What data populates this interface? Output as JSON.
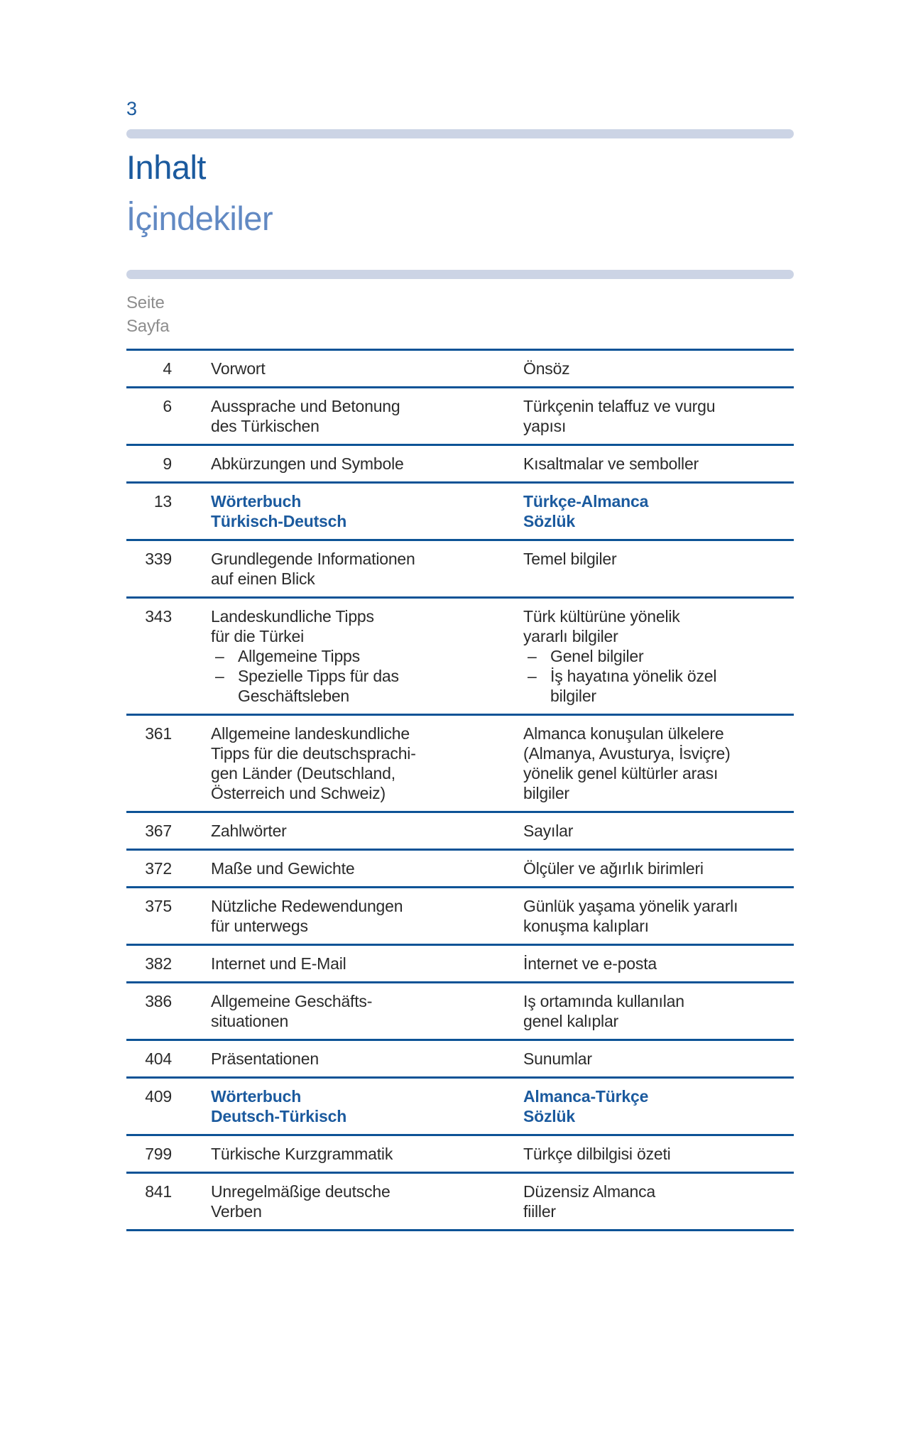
{
  "page": {
    "folio": "3"
  },
  "header": {
    "title_de": "Inhalt",
    "title_tr": "İçindekiler"
  },
  "column_header": {
    "de": "Seite",
    "tr": "Sayfa"
  },
  "colors": {
    "accent_blue": "#1b5a9e",
    "light_blue_title": "#6189c3",
    "divider_bar": "#ccd4e5",
    "rule_blue": "#0d5396",
    "body_text": "#2b2b2b",
    "column_header_gray": "#8d8d8d"
  },
  "toc": {
    "dash": "–",
    "rows": [
      {
        "page": "4",
        "bold": false,
        "de": [
          {
            "t": "Vorwort"
          }
        ],
        "tr": [
          {
            "t": "Önsöz"
          }
        ]
      },
      {
        "page": "6",
        "bold": false,
        "de": [
          {
            "t": "Aussprache und Betonung"
          },
          {
            "t": "des Türkischen"
          }
        ],
        "tr": [
          {
            "t": "Türkçenin telaffuz ve vurgu"
          },
          {
            "t": "yapısı"
          }
        ]
      },
      {
        "page": "9",
        "bold": false,
        "de": [
          {
            "t": "Abkürzungen und Symbole"
          }
        ],
        "tr": [
          {
            "t": "Kısaltmalar ve semboller"
          }
        ]
      },
      {
        "page": "13",
        "bold": true,
        "de": [
          {
            "t": "Wörterbuch"
          },
          {
            "t": "Türkisch-Deutsch"
          }
        ],
        "tr": [
          {
            "t": "Türkçe-Almanca"
          },
          {
            "t": "Sözlük"
          }
        ]
      },
      {
        "page": "339",
        "bold": false,
        "de": [
          {
            "t": "Grundlegende Informationen"
          },
          {
            "t": "auf einen Blick"
          }
        ],
        "tr": [
          {
            "t": "Temel bilgiler"
          }
        ]
      },
      {
        "page": "343",
        "bold": false,
        "de": [
          {
            "t": "Landeskundliche Tipps"
          },
          {
            "t": "für die Türkei"
          },
          {
            "t": "Allgemeine Tipps",
            "b": true
          },
          {
            "t": "Spezielle Tipps für das",
            "b": true
          },
          {
            "t": "Geschäftsleben",
            "c": true
          }
        ],
        "tr": [
          {
            "t": "Türk kültürüne yönelik"
          },
          {
            "t": "yararlı bilgiler"
          },
          {
            "t": "Genel bilgiler",
            "b": true
          },
          {
            "t": "İş hayatına yönelik özel",
            "b": true
          },
          {
            "t": "bilgiler",
            "c": true
          }
        ]
      },
      {
        "page": "361",
        "bold": false,
        "de": [
          {
            "t": "Allgemeine landeskundliche"
          },
          {
            "t": "Tipps für die deutschsprachi-"
          },
          {
            "t": "gen Länder (Deutschland,"
          },
          {
            "t": "Österreich und Schweiz)"
          }
        ],
        "tr": [
          {
            "t": "Almanca konuşulan ülkelere"
          },
          {
            "t": "(Almanya, Avusturya, İsviçre)"
          },
          {
            "t": "yönelik genel kültürler arası"
          },
          {
            "t": "bilgiler"
          }
        ]
      },
      {
        "page": "367",
        "bold": false,
        "de": [
          {
            "t": "Zahlwörter"
          }
        ],
        "tr": [
          {
            "t": "Sayılar"
          }
        ]
      },
      {
        "page": "372",
        "bold": false,
        "de": [
          {
            "t": "Maße und Gewichte"
          }
        ],
        "tr": [
          {
            "t": "Ölçüler ve ağırlık birimleri"
          }
        ]
      },
      {
        "page": "375",
        "bold": false,
        "de": [
          {
            "t": "Nützliche Redewendungen"
          },
          {
            "t": "für unterwegs"
          }
        ],
        "tr": [
          {
            "t": "Günlük yaşama yönelik yararlı"
          },
          {
            "t": "konuşma kalıpları"
          }
        ]
      },
      {
        "page": "382",
        "bold": false,
        "de": [
          {
            "t": "Internet und E-Mail"
          }
        ],
        "tr": [
          {
            "t": "İnternet ve e-posta"
          }
        ]
      },
      {
        "page": "386",
        "bold": false,
        "de": [
          {
            "t": "Allgemeine Geschäfts-"
          },
          {
            "t": "situationen"
          }
        ],
        "tr": [
          {
            "t": "Iş ortamında kullanılan"
          },
          {
            "t": "genel kalıplar"
          }
        ]
      },
      {
        "page": "404",
        "bold": false,
        "de": [
          {
            "t": "Präsentationen"
          }
        ],
        "tr": [
          {
            "t": "Sunumlar"
          }
        ]
      },
      {
        "page": "409",
        "bold": true,
        "de": [
          {
            "t": "Wörterbuch"
          },
          {
            "t": "Deutsch-Türkisch"
          }
        ],
        "tr": [
          {
            "t": "Almanca-Türkçe"
          },
          {
            "t": "Sözlük"
          }
        ]
      },
      {
        "page": "799",
        "bold": false,
        "de": [
          {
            "t": "Türkische Kurzgrammatik"
          }
        ],
        "tr": [
          {
            "t": "Türkçe dilbilgisi özeti"
          }
        ]
      },
      {
        "page": "841",
        "bold": false,
        "de": [
          {
            "t": "Unregelmäßige deutsche"
          },
          {
            "t": "Verben"
          }
        ],
        "tr": [
          {
            "t": "Düzensiz Almanca"
          },
          {
            "t": "fiiller"
          }
        ]
      }
    ]
  }
}
